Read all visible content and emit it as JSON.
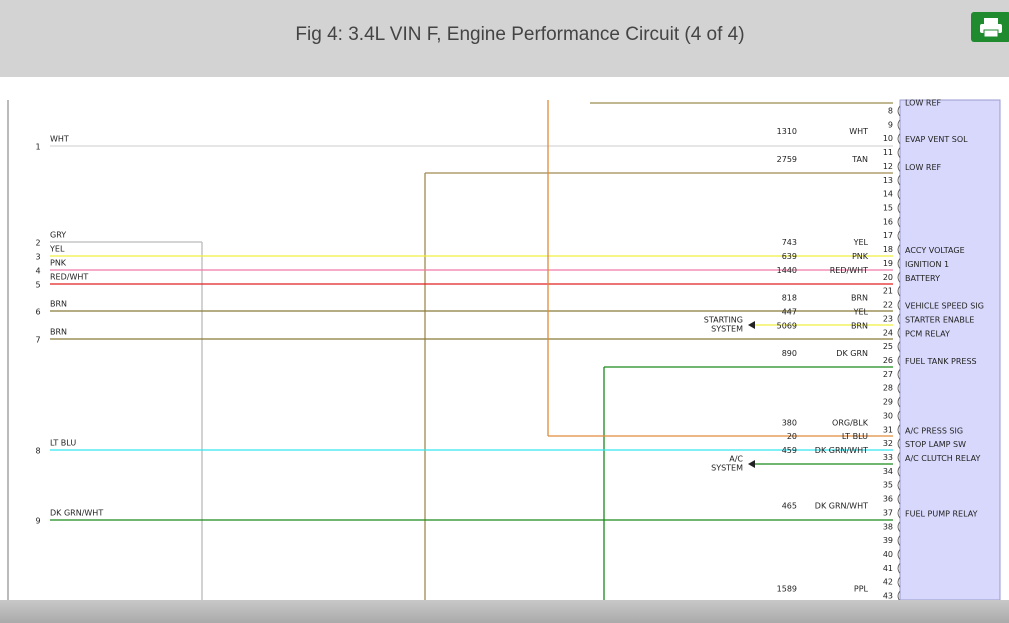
{
  "header": {
    "title": "Fig 4: 3.4L VIN F, Engine Performance Circuit (4 of 4)"
  },
  "left_pins": [
    {
      "number": "1",
      "wire": "WHT"
    },
    {
      "number": "2",
      "wire": "GRY"
    },
    {
      "number": "3",
      "wire": "YEL"
    },
    {
      "number": "4",
      "wire": "PNK"
    },
    {
      "number": "5",
      "wire": "RED/WHT"
    },
    {
      "number": "6",
      "wire": "BRN"
    },
    {
      "number": "7",
      "wire": "BRN"
    },
    {
      "number": "8",
      "wire": "LT BLU"
    },
    {
      "number": "9",
      "wire": "DK GRN/WHT"
    }
  ],
  "connector": {
    "pins": [
      {
        "number": "8",
        "label": "LOW REF"
      },
      {
        "number": "9"
      },
      {
        "number": "10",
        "circuit": "1310",
        "color": "WHT",
        "label": "EVAP VENT SOL"
      },
      {
        "number": "11"
      },
      {
        "number": "12",
        "circuit": "2759",
        "color": "TAN",
        "label": "LOW REF"
      },
      {
        "number": "13"
      },
      {
        "number": "14"
      },
      {
        "number": "15"
      },
      {
        "number": "16"
      },
      {
        "number": "17"
      },
      {
        "number": "18",
        "circuit": "743",
        "color": "YEL",
        "label": "ACCY VOLTAGE"
      },
      {
        "number": "19",
        "circuit": "639",
        "color": "PNK",
        "label": "IGNITION 1"
      },
      {
        "number": "20",
        "circuit": "1440",
        "color": "RED/WHT",
        "label": "BATTERY"
      },
      {
        "number": "21"
      },
      {
        "number": "22",
        "circuit": "818",
        "color": "BRN",
        "label": "VEHICLE SPEED SIG"
      },
      {
        "number": "23",
        "circuit": "447",
        "color": "YEL",
        "label": "STARTER ENABLE"
      },
      {
        "number": "24",
        "circuit": "5069",
        "color": "BRN",
        "label": "PCM RELAY"
      },
      {
        "number": "25"
      },
      {
        "number": "26",
        "circuit": "890",
        "color": "DK GRN",
        "label": "FUEL TANK PRESS"
      },
      {
        "number": "27"
      },
      {
        "number": "28"
      },
      {
        "number": "29"
      },
      {
        "number": "30"
      },
      {
        "number": "31",
        "circuit": "380",
        "color": "ORG/BLK",
        "label": "A/C PRESS SIG"
      },
      {
        "number": "32",
        "circuit": "20",
        "color": "LT BLU",
        "label": "STOP LAMP SW"
      },
      {
        "number": "33",
        "circuit": "459",
        "color": "DK GRN/WHT",
        "label": "A/C CLUTCH RELAY"
      },
      {
        "number": "34"
      },
      {
        "number": "35"
      },
      {
        "number": "36"
      },
      {
        "number": "37",
        "circuit": "465",
        "color": "DK GRN/WHT",
        "label": "FUEL PUMP RELAY"
      },
      {
        "number": "38"
      },
      {
        "number": "39"
      },
      {
        "number": "40"
      },
      {
        "number": "41"
      },
      {
        "number": "42"
      },
      {
        "number": "43",
        "circuit": "1589",
        "color": "PPL"
      }
    ]
  },
  "arrows": [
    {
      "lines": [
        "STARTING",
        "SYSTEM"
      ]
    },
    {
      "lines": [
        "A/C",
        "SYSTEM"
      ]
    }
  ]
}
